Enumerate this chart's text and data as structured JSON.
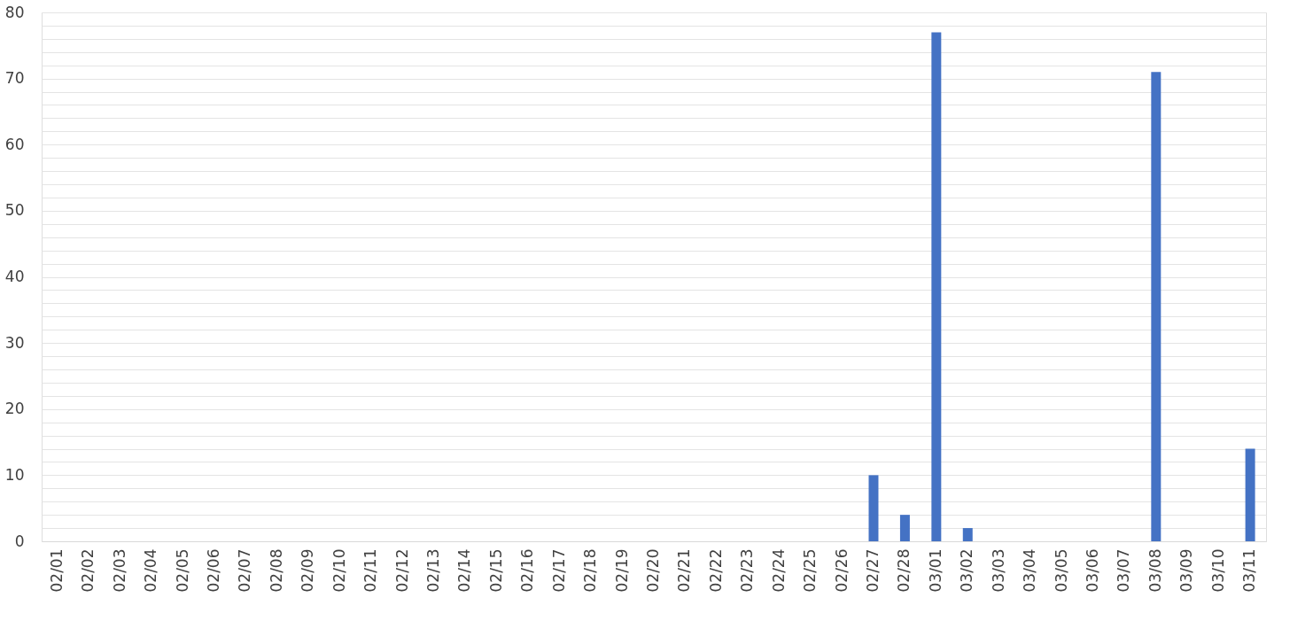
{
  "chart_data": {
    "type": "bar",
    "categories": [
      "02/01",
      "02/02",
      "02/03",
      "02/04",
      "02/05",
      "02/06",
      "02/07",
      "02/08",
      "02/09",
      "02/10",
      "02/11",
      "02/12",
      "02/13",
      "02/14",
      "02/15",
      "02/16",
      "02/17",
      "02/18",
      "02/19",
      "02/20",
      "02/21",
      "02/22",
      "02/23",
      "02/24",
      "02/25",
      "02/26",
      "02/27",
      "02/28",
      "03/01",
      "03/02",
      "03/03",
      "03/04",
      "03/05",
      "03/06",
      "03/07",
      "03/08",
      "03/09",
      "03/10",
      "03/11"
    ],
    "values": [
      0,
      0,
      0,
      0,
      0,
      0,
      0,
      0,
      0,
      0,
      0,
      0,
      0,
      0,
      0,
      0,
      0,
      0,
      0,
      0,
      0,
      0,
      0,
      0,
      0,
      0,
      10,
      4,
      77,
      2,
      0,
      0,
      0,
      0,
      0,
      71,
      0,
      0,
      14
    ],
    "color": "#4472c4",
    "ylim": [
      0,
      80
    ],
    "yticks": [
      0,
      {
        "value": 2,
        "label": null
      },
      {
        "value": 4,
        "label": null
      },
      {
        "value": 6,
        "label": null
      },
      {
        "value": 8,
        "label": null
      },
      10,
      {
        "value": 12,
        "label": null
      },
      {
        "value": 14,
        "label": null
      },
      {
        "value": 16,
        "label": null
      },
      {
        "value": 18,
        "label": null
      },
      20,
      {
        "value": 22,
        "label": null
      },
      {
        "value": 24,
        "label": null
      },
      {
        "value": 26,
        "label": null
      },
      {
        "value": 28,
        "label": null
      },
      30,
      {
        "value": 32,
        "label": null
      },
      {
        "value": 34,
        "label": null
      },
      {
        "value": 36,
        "label": null
      },
      {
        "value": 38,
        "label": null
      },
      40,
      {
        "value": 42,
        "label": null
      },
      {
        "value": 44,
        "label": null
      },
      {
        "value": 46,
        "label": null
      },
      {
        "value": 48,
        "label": null
      },
      50,
      {
        "value": 52,
        "label": null
      },
      {
        "value": 54,
        "label": null
      },
      {
        "value": 56,
        "label": null
      },
      {
        "value": 58,
        "label": null
      },
      60,
      {
        "value": 62,
        "label": null
      },
      {
        "value": 64,
        "label": null
      },
      {
        "value": 66,
        "label": null
      },
      {
        "value": 68,
        "label": null
      },
      70,
      {
        "value": 72,
        "label": null
      },
      {
        "value": 74,
        "label": null
      },
      {
        "value": 76,
        "label": null
      },
      {
        "value": 78,
        "label": null
      },
      80
    ],
    "grid": "y"
  }
}
